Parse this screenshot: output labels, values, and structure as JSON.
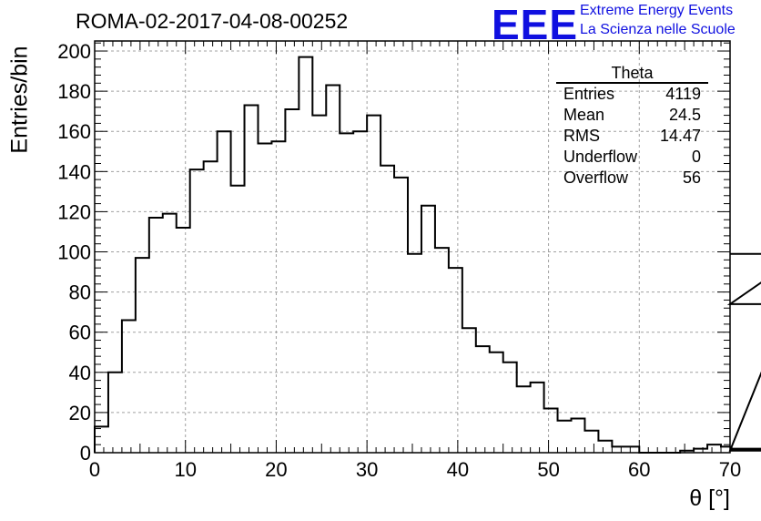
{
  "title": "ROMA-02-2017-04-08-00252",
  "logo": {
    "text": "EEE",
    "line1": "Extreme Energy Events",
    "line2": "La Scienza nelle Scuole"
  },
  "stats": {
    "title": "Theta",
    "rows": [
      {
        "label": "Entries",
        "value": "4119"
      },
      {
        "label": "Mean",
        "value": "24.5"
      },
      {
        "label": "RMS",
        "value": "14.47"
      },
      {
        "label": "Underflow",
        "value": "0"
      },
      {
        "label": "Overflow",
        "value": "56"
      }
    ]
  },
  "chart_data": {
    "type": "bar",
    "xlabel": "θ [°]",
    "ylabel": "Entries/bin",
    "xlim": [
      0,
      70
    ],
    "ylim": [
      0,
      205
    ],
    "bin_width": 1.5,
    "x_start": 0,
    "grid": true,
    "x_ticks": [
      0,
      10,
      20,
      30,
      40,
      50,
      60,
      70
    ],
    "y_ticks": [
      0,
      20,
      40,
      60,
      80,
      100,
      120,
      140,
      160,
      180,
      200
    ],
    "values": [
      13,
      40,
      66,
      97,
      117,
      119,
      112,
      141,
      145,
      160,
      133,
      173,
      154,
      155,
      171,
      197,
      168,
      183,
      159,
      160,
      168,
      143,
      137,
      99,
      123,
      102,
      92,
      62,
      53,
      50,
      45,
      33,
      35,
      22,
      16,
      17,
      11,
      6,
      3,
      3,
      0,
      0,
      0,
      1,
      2,
      4,
      3,
      1,
      1,
      2,
      1,
      74,
      99
    ]
  }
}
